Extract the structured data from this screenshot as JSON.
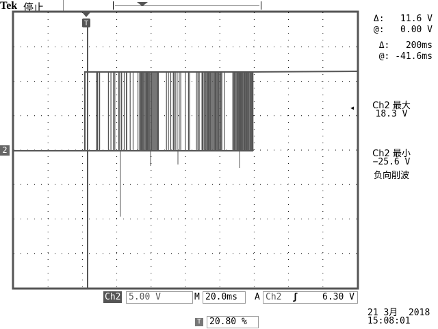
{
  "header": {
    "brand": "Tek",
    "status": "停止"
  },
  "cursors": {
    "delta_v": "Δ:   11.6 V",
    "at_v": "@:   0.00 V",
    "delta_t": "Δ:   200ms",
    "at_t": "@: -41.6ms"
  },
  "measure": {
    "max_label": "Ch2 最大",
    "max_value": "18.3 V",
    "min_label": "Ch2 最小",
    "min_value": "−25.6 V",
    "min_note": "负向削波"
  },
  "channel": {
    "marker": "2",
    "name": "Ch2",
    "scale": "5.00 V"
  },
  "timebase": {
    "prefix": "M",
    "value": "20.0ms"
  },
  "trigger": {
    "mode": "A",
    "source": "Ch2",
    "slope_icon": "rising-edge-icon",
    "slope": "ʃ",
    "level": "6.30 V",
    "position": "20.80 %",
    "marker": "T"
  },
  "datetime": {
    "date": "21 3月  2018",
    "time": "15:08:01"
  },
  "colors": {
    "trace": "#555555",
    "grid": "#000000"
  }
}
